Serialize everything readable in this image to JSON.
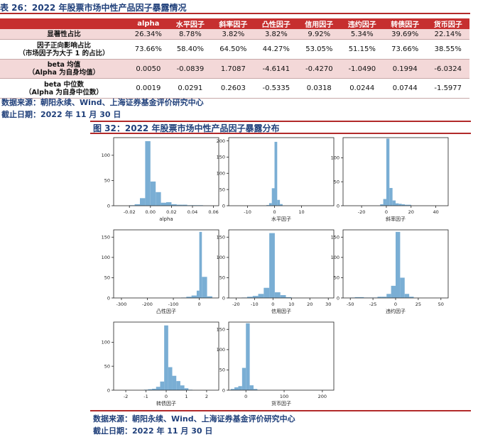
{
  "table_caption": "表 26：2022 年股票市场中性产品因子暴露情况",
  "table": {
    "columns": [
      "",
      "alpha",
      "水平因子",
      "斜率因子",
      "凸性因子",
      "信用因子",
      "违约因子",
      "转债因子",
      "货币因子"
    ],
    "rows": [
      {
        "label": "显著性占比",
        "values": [
          "26.34%",
          "8.78%",
          "3.82%",
          "3.82%",
          "9.92%",
          "5.34%",
          "39.69%",
          "22.14%"
        ]
      },
      {
        "label": "因子正向影响占比",
        "label2": "（市场因子为大于 1 的占比）",
        "values": [
          "73.66%",
          "58.40%",
          "64.50%",
          "44.27%",
          "53.05%",
          "51.15%",
          "73.66%",
          "38.55%"
        ]
      },
      {
        "label": "beta 均值",
        "label2": "（Alpha 为自身均值）",
        "values": [
          "0.0050",
          "-0.0839",
          "1.7087",
          "-4.6141",
          "-0.4270",
          "-1.0490",
          "0.1994",
          "-6.0324"
        ]
      },
      {
        "label": "beta 中位数",
        "label2": "（Alpha 为自身中位数）",
        "values": [
          "0.0019",
          "0.0291",
          "0.2603",
          "-0.5335",
          "0.0318",
          "0.0244",
          "0.0744",
          "-1.5977"
        ]
      }
    ]
  },
  "source1": "数据来源：朝阳永续、Wind、上海证券基金评价研究中心",
  "date1": "截止日期：2022 年 11 月 30 日",
  "figure_caption": "图 32：2022 年股票市场中性产品因子暴露分布",
  "chart_data": [
    {
      "type": "bar",
      "xlabel": "alpha",
      "xlim": [
        -0.035,
        0.065
      ],
      "ylim": [
        0,
        135
      ],
      "xticks": [
        -0.02,
        0,
        0.02,
        0.04,
        0.06
      ],
      "xtick_labels": [
        "-0.02",
        "0.00",
        "0.02",
        "0.04",
        "0.06"
      ],
      "yticks": [
        0,
        50,
        100
      ],
      "bin_edges": [
        -0.02,
        -0.015,
        -0.01,
        -0.005,
        0,
        0.005,
        0.01,
        0.015,
        0.02,
        0.025,
        0.03,
        0.035,
        0.04,
        0.045,
        0.05
      ],
      "counts": [
        1,
        3,
        15,
        128,
        48,
        27,
        6,
        7,
        3,
        2,
        2,
        1,
        1,
        1
      ]
    },
    {
      "type": "bar",
      "xlabel": "水平因子",
      "xlim": [
        -17,
        22
      ],
      "ylim": [
        0,
        210
      ],
      "xticks": [
        -10,
        0,
        10
      ],
      "xtick_labels": [
        "-10",
        "0",
        "10"
      ],
      "yticks": [
        0,
        50,
        100,
        150,
        200
      ],
      "bin_edges": [
        -3,
        -2,
        -1,
        0,
        1,
        2,
        3
      ],
      "counts": [
        2,
        8,
        54,
        197,
        18,
        5
      ]
    },
    {
      "type": "bar",
      "xlabel": "斜率因子",
      "xlim": [
        -35,
        50
      ],
      "ylim": [
        0,
        142
      ],
      "xticks": [
        -20,
        0,
        20,
        40
      ],
      "xtick_labels": [
        "-20",
        "0",
        "20",
        "40"
      ],
      "yticks": [
        0,
        50,
        100
      ],
      "bin_edges": [
        -5,
        -2.5,
        0,
        2.5,
        5,
        7.5,
        10,
        12.5,
        15,
        20
      ],
      "counts": [
        3,
        14,
        140,
        37,
        11,
        5,
        4,
        3,
        2
      ]
    },
    {
      "type": "bar",
      "xlabel": "凸性因子",
      "xlim": [
        -330,
        75
      ],
      "ylim": [
        0,
        168
      ],
      "xticks": [
        -300,
        -200,
        -100,
        0
      ],
      "xtick_labels": [
        "-300",
        "-200",
        "-100",
        "0"
      ],
      "yticks": [
        0,
        50,
        100,
        150
      ],
      "bin_edges": [
        -70,
        -50,
        -30,
        -10,
        0,
        10,
        30,
        50
      ],
      "counts": [
        1,
        3,
        6,
        18,
        163,
        52,
        4
      ]
    },
    {
      "type": "bar",
      "xlabel": "信用因子",
      "xlim": [
        -24,
        33
      ],
      "ylim": [
        0,
        168
      ],
      "xticks": [
        -20,
        -10,
        0,
        10,
        20,
        30
      ],
      "xtick_labels": [
        "-20",
        "-10",
        "0",
        "10",
        "20",
        "30"
      ],
      "yticks": [
        0,
        50,
        100,
        150
      ],
      "bin_edges": [
        -17,
        -14,
        -11,
        -8,
        -5,
        -2,
        1,
        4,
        7,
        10
      ],
      "counts": [
        1,
        3,
        5,
        10,
        25,
        160,
        14,
        7,
        2
      ]
    },
    {
      "type": "bar",
      "xlabel": "违约因子",
      "xlim": [
        -58,
        58
      ],
      "ylim": [
        0,
        168
      ],
      "xticks": [
        -50,
        -25,
        0,
        25,
        50
      ],
      "xtick_labels": [
        "-50",
        "-25",
        "0",
        "25",
        "50"
      ],
      "yticks": [
        0,
        50,
        100,
        150
      ],
      "bin_edges": [
        -50,
        -45,
        -40,
        -35,
        -30,
        -25,
        -20,
        -15,
        -10,
        -5,
        0,
        5,
        10,
        15,
        20
      ],
      "counts": [
        1,
        2,
        2,
        1,
        1,
        1,
        3,
        3,
        10,
        30,
        163,
        50,
        10,
        3
      ]
    },
    {
      "type": "bar",
      "xlabel": "转债因子",
      "xlim": [
        -2.6,
        2.6
      ],
      "ylim": [
        0,
        142
      ],
      "xticks": [
        -2,
        -1,
        0,
        1,
        2
      ],
      "xtick_labels": [
        "-2",
        "-1",
        "0",
        "1",
        "2"
      ],
      "yticks": [
        0,
        50,
        100
      ],
      "bin_edges": [
        -1.1,
        -0.9,
        -0.7,
        -0.5,
        -0.3,
        -0.1,
        0.1,
        0.3,
        0.5,
        0.7,
        0.9,
        1.1,
        1.3
      ],
      "counts": [
        1,
        2,
        3,
        7,
        18,
        135,
        48,
        30,
        19,
        10,
        4,
        1
      ]
    },
    {
      "type": "bar",
      "xlabel": "货币因子",
      "xlim": [
        -45,
        230
      ],
      "ylim": [
        0,
        168
      ],
      "xticks": [
        0,
        100,
        200
      ],
      "xtick_labels": [
        "0",
        "100",
        "200"
      ],
      "yticks": [
        0,
        50,
        100,
        150
      ],
      "bin_edges": [
        -40,
        -30,
        -20,
        -10,
        0,
        10,
        20,
        30
      ],
      "counts": [
        3,
        7,
        10,
        55,
        165,
        12,
        3
      ]
    }
  ],
  "source2": "数据来源：朝阳永续、Wind、上海证券基金评价研究中心",
  "date2": "截止日期：2022 年 11 月 30 日"
}
